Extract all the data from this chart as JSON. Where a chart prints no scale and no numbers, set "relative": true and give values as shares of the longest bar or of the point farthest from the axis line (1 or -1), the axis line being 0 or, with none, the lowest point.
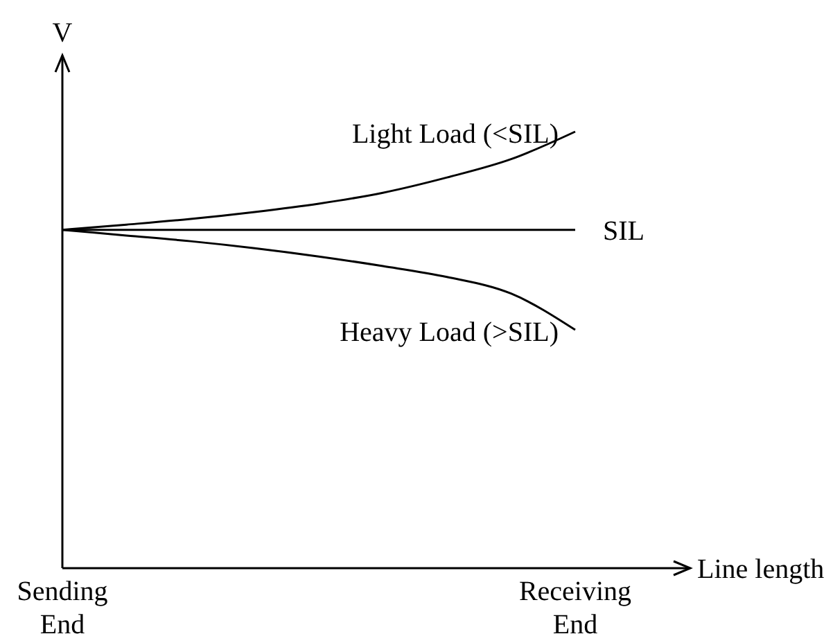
{
  "chart_data": {
    "type": "line",
    "relative": true,
    "xlabel": "Line length",
    "ylabel": "V",
    "line_style": "solid",
    "categories": [
      "Sending End",
      null,
      null,
      null,
      null,
      null,
      null,
      null,
      "Receiving End"
    ],
    "series": [
      {
        "name": "Light Load (<SIL)",
        "color": "#000000",
        "values": [
          0.775,
          0.787,
          0.8,
          0.816,
          0.835,
          0.86,
          0.895,
          0.937,
          1
        ]
      },
      {
        "name": "SIL",
        "color": "#000000",
        "values": [
          0.775,
          0.775,
          0.775,
          0.775,
          0.775,
          0.775,
          0.775,
          0.775,
          0.775
        ]
      },
      {
        "name": "Heavy Load (>SIL)",
        "color": "#000000",
        "values": [
          0.775,
          0.762,
          0.749,
          0.733,
          0.714,
          0.692,
          0.667,
          0.629,
          0.546
        ]
      }
    ]
  }
}
